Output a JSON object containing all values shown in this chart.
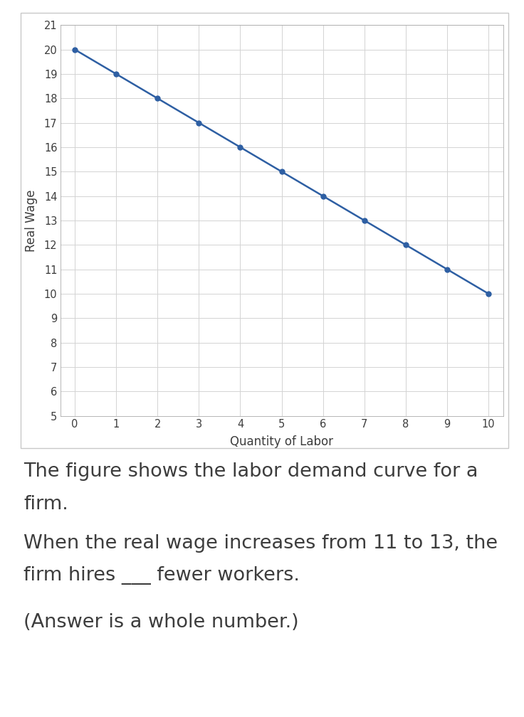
{
  "x": [
    0,
    1,
    2,
    3,
    4,
    5,
    6,
    7,
    8,
    9,
    10
  ],
  "y": [
    20,
    19,
    18,
    17,
    16,
    15,
    14,
    13,
    12,
    11,
    10
  ],
  "xlabel": "Quantity of Labor",
  "ylabel": "Real Wage",
  "xlim_min": -0.35,
  "xlim_max": 10.35,
  "ylim_min": 5,
  "ylim_max": 21,
  "xticks": [
    0,
    1,
    2,
    3,
    4,
    5,
    6,
    7,
    8,
    9,
    10
  ],
  "yticks": [
    5,
    6,
    7,
    8,
    9,
    10,
    11,
    12,
    13,
    14,
    15,
    16,
    17,
    18,
    19,
    20,
    21
  ],
  "line_color": "#2E5FA3",
  "marker": "o",
  "marker_size": 5,
  "line_width": 1.8,
  "grid_color": "#D3D3D3",
  "plot_bg_color": "#FFFFFF",
  "fig_bg_color": "#FFFFFF",
  "text_color": "#3D3D3D",
  "axis_label_fontsize": 12,
  "tick_fontsize": 10.5,
  "text1_line1": "The figure shows the labor demand curve for a",
  "text1_line2": "firm.",
  "text2_line1": "When the real wage increases from 11 to 13, the",
  "text2_line2": "firm hires ___ fewer workers.",
  "text3": "(Answer is a whole number.)",
  "text_fontsize": 19.5,
  "border_color": "#C8C8C8",
  "spine_color": "#AAAAAA"
}
